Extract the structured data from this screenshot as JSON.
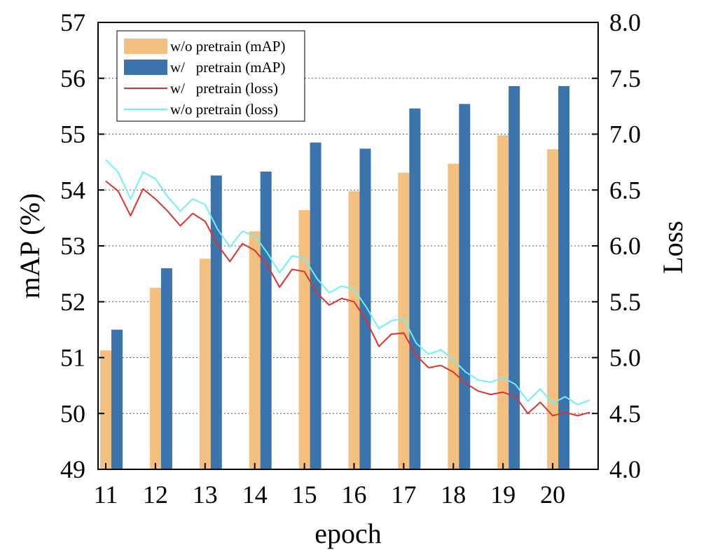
{
  "chart_data": {
    "type": "bar",
    "xlabel": "epoch",
    "ylabel": "mAP (%)",
    "y2label": "Loss",
    "categories": [
      "11",
      "12",
      "13",
      "14",
      "15",
      "16",
      "17",
      "18",
      "19",
      "20"
    ],
    "ylim": [
      49,
      57
    ],
    "y2lim": [
      4.0,
      8.0
    ],
    "yticks": [
      "49",
      "50",
      "51",
      "52",
      "53",
      "54",
      "55",
      "56",
      "57"
    ],
    "y2ticks": [
      "4.0",
      "4.5",
      "5.0",
      "5.5",
      "6.0",
      "6.5",
      "7.0",
      "7.5",
      "8.0"
    ],
    "grid": "horizontal-dotted",
    "legend_position": "top-left",
    "bar_series": [
      {
        "name": "w/o pretrain (mAP)",
        "color": "#f4c07f",
        "values": [
          51.13,
          52.25,
          52.77,
          53.26,
          53.64,
          53.98,
          54.31,
          54.47,
          54.98,
          54.73
        ]
      },
      {
        "name": "w/   pretrain (mAP)",
        "color": "#3b74ad",
        "values": [
          51.5,
          52.6,
          54.26,
          54.33,
          54.85,
          54.74,
          55.46,
          55.54,
          55.86,
          55.86
        ]
      }
    ],
    "line_series": [
      {
        "name": "w/   pretrain (loss)",
        "color": "#d9342b",
        "axis": "right",
        "x": [
          11.0,
          11.25,
          11.5,
          11.75,
          12.0,
          12.25,
          12.5,
          12.75,
          13.0,
          13.25,
          13.5,
          13.75,
          14.0,
          14.25,
          14.5,
          14.75,
          15.0,
          15.25,
          15.5,
          15.75,
          16.0,
          16.25,
          16.5,
          16.75,
          17.0,
          17.25,
          17.5,
          17.75,
          18.0,
          18.25,
          18.5,
          18.75,
          19.0,
          19.25,
          19.5,
          19.75,
          20.0,
          20.25,
          20.5,
          20.75
        ],
        "values": [
          6.58,
          6.49,
          6.27,
          6.51,
          6.42,
          6.31,
          6.18,
          6.29,
          6.22,
          6.01,
          5.86,
          6.02,
          5.96,
          5.83,
          5.63,
          5.79,
          5.77,
          5.58,
          5.47,
          5.53,
          5.5,
          5.33,
          5.1,
          5.21,
          5.22,
          5.02,
          4.91,
          4.93,
          4.87,
          4.77,
          4.7,
          4.67,
          4.69,
          4.65,
          4.5,
          4.6,
          4.48,
          4.51,
          4.48,
          4.51
        ]
      },
      {
        "name": "w/o pretrain (loss)",
        "color": "#6ff0f3",
        "axis": "right",
        "x": [
          11.0,
          11.25,
          11.5,
          11.75,
          12.0,
          12.25,
          12.5,
          12.75,
          13.0,
          13.25,
          13.5,
          13.75,
          14.0,
          14.25,
          14.5,
          14.75,
          15.0,
          15.25,
          15.5,
          15.75,
          16.0,
          16.25,
          16.5,
          16.75,
          17.0,
          17.25,
          17.5,
          17.75,
          18.0,
          18.25,
          18.5,
          18.75,
          19.0,
          19.25,
          19.5,
          19.75,
          20.0,
          20.25,
          20.5,
          20.75
        ],
        "values": [
          6.77,
          6.66,
          6.42,
          6.66,
          6.6,
          6.44,
          6.31,
          6.42,
          6.37,
          6.15,
          5.99,
          6.13,
          6.09,
          5.94,
          5.76,
          5.91,
          5.89,
          5.71,
          5.58,
          5.64,
          5.61,
          5.45,
          5.26,
          5.33,
          5.35,
          5.13,
          5.03,
          5.07,
          4.98,
          4.87,
          4.8,
          4.78,
          4.82,
          4.76,
          4.61,
          4.72,
          4.59,
          4.65,
          4.58,
          4.62
        ]
      }
    ]
  }
}
